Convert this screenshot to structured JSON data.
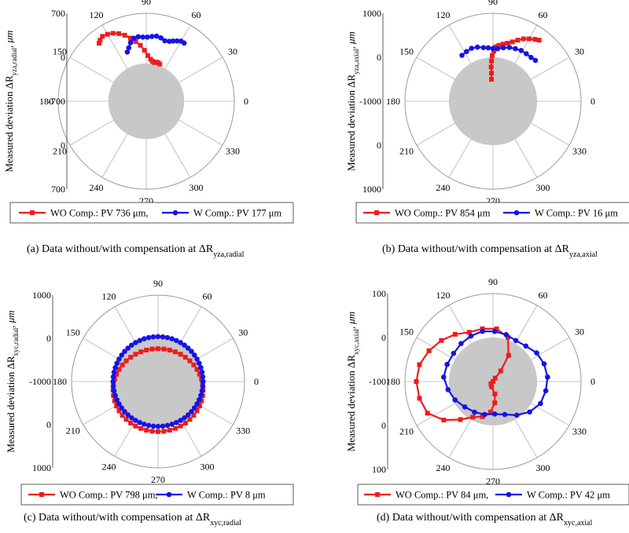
{
  "charts": [
    {
      "id": "a",
      "type": "polar",
      "angle_labels": [
        "0",
        "30",
        "60",
        "90",
        "120",
        "150",
        "180",
        "210",
        "240",
        "270",
        "300",
        "330"
      ],
      "radial_ticks_upper": [
        "700",
        "0",
        "-700"
      ],
      "radial_ticks_lower": [
        "0",
        "700"
      ],
      "ylabel_main": "Measured deviation ΔR",
      "ylabel_sub": "yza,radial",
      "ylabel_unit": ", μm",
      "legend": [
        {
          "name": "WO Comp.: PV 736 μm,",
          "color": "#ee1c1c",
          "marker": "square"
        },
        {
          "name": "W Comp.: PV 177 μm",
          "color": "#1414e6",
          "marker": "circle"
        }
      ],
      "caption_main": "(a) Data without/with compensation at ΔR",
      "caption_sub": "yza,radial",
      "disk_frac": 0.43,
      "series": [
        {
          "name": "WO",
          "color": "#ee1c1c",
          "marker": "square",
          "points": [
            [
              129,
              0.85
            ],
            [
              127,
              0.87
            ],
            [
              124,
              0.89
            ],
            [
              120,
              0.88
            ],
            [
              116,
              0.86
            ],
            [
              112,
              0.83
            ],
            [
              108,
              0.79
            ],
            [
              104,
              0.74
            ],
            [
              100,
              0.69
            ],
            [
              96,
              0.64
            ],
            [
              92,
              0.58
            ],
            [
              88,
              0.52
            ],
            [
              84,
              0.48
            ],
            [
              81,
              0.46
            ],
            [
              78,
              0.45
            ],
            [
              76,
              0.46
            ],
            [
              73,
              0.46
            ],
            [
              70,
              0.45
            ]
          ]
        },
        {
          "name": "W",
          "color": "#1414e6",
          "marker": "circle",
          "points": [
            [
              111,
              0.6
            ],
            [
              108,
              0.64
            ],
            [
              105,
              0.69
            ],
            [
              101,
              0.73
            ],
            [
              97,
              0.74
            ],
            [
              93,
              0.73
            ],
            [
              89,
              0.73
            ],
            [
              85,
              0.74
            ],
            [
              81,
              0.75
            ],
            [
              77,
              0.74
            ],
            [
              73,
              0.72
            ],
            [
              69,
              0.73
            ],
            [
              66,
              0.75
            ],
            [
              63,
              0.77
            ],
            [
              60,
              0.79
            ],
            [
              57,
              0.79
            ]
          ]
        }
      ]
    },
    {
      "id": "b",
      "type": "polar",
      "angle_labels": [
        "0",
        "30",
        "60",
        "90",
        "120",
        "150",
        "180",
        "210",
        "240",
        "270",
        "300",
        "330"
      ],
      "radial_ticks_upper": [
        "1000",
        "0",
        "-1000"
      ],
      "radial_ticks_lower": [
        "0",
        "1000"
      ],
      "ylabel_main": "Measured deviation ΔR",
      "ylabel_sub": "yza,axial",
      "ylabel_unit": ", μm",
      "legend": [
        {
          "name": "WO Comp.: PV 854 μm",
          "color": "#ee1c1c",
          "marker": "square"
        },
        {
          "name": "W Comp.: PV 16 μm",
          "color": "#1414e6",
          "marker": "circle"
        }
      ],
      "caption_main": "(b) Data without/with compensation at ΔR",
      "caption_sub": "yza,axial",
      "disk_frac": 0.5,
      "series": [
        {
          "name": "WO",
          "color": "#ee1c1c",
          "marker": "square",
          "points": [
            [
              94,
              0.25
            ],
            [
              93,
              0.32
            ],
            [
              93,
              0.39
            ],
            [
              92,
              0.46
            ],
            [
              91,
              0.52
            ],
            [
              89,
              0.57
            ],
            [
              87,
              0.62
            ],
            [
              84,
              0.64
            ],
            [
              80,
              0.66
            ],
            [
              76,
              0.68
            ],
            [
              72,
              0.71
            ],
            [
              68,
              0.75
            ],
            [
              64,
              0.79
            ],
            [
              60,
              0.82
            ],
            [
              56,
              0.85
            ],
            [
              53,
              0.87
            ]
          ]
        },
        {
          "name": "W",
          "color": "#1414e6",
          "marker": "circle",
          "points": [
            [
              124,
              0.63
            ],
            [
              118,
              0.64
            ],
            [
              112,
              0.65
            ],
            [
              106,
              0.64
            ],
            [
              100,
              0.62
            ],
            [
              95,
              0.61
            ],
            [
              90,
              0.6
            ],
            [
              85,
              0.6
            ],
            [
              79,
              0.62
            ],
            [
              73,
              0.64
            ],
            [
              67,
              0.65
            ],
            [
              61,
              0.66
            ],
            [
              55,
              0.66
            ],
            [
              49,
              0.66
            ],
            [
              44,
              0.67
            ]
          ]
        }
      ]
    },
    {
      "id": "c",
      "type": "polar",
      "angle_labels": [
        "0",
        "30",
        "60",
        "90",
        "120",
        "150",
        "180",
        "210",
        "240",
        "270",
        "300",
        "330"
      ],
      "radial_ticks_upper": [
        "1000",
        "0",
        "-1000"
      ],
      "radial_ticks_lower": [
        "0",
        "1000"
      ],
      "ylabel_main": "Measured deviation ΔR",
      "ylabel_sub": "xyc,radial",
      "ylabel_unit": ", μm",
      "legend": [
        {
          "name": "WO Comp.: PV 798 μm,",
          "color": "#ee1c1c",
          "marker": "square"
        },
        {
          "name": "W Comp.: PV 8 μm",
          "color": "#1414e6",
          "marker": "circle"
        }
      ],
      "caption_main": "(c) Data without/with compensation at ΔR",
      "caption_sub": "xyc,radial",
      "disk_frac": 0.5,
      "circle_red": {
        "cx": 0,
        "cy": -0.1,
        "rx": 0.52,
        "ry": 0.48,
        "n": 48
      },
      "circle_blue": {
        "cx": 0,
        "cy": 0,
        "rx": 0.52,
        "ry": 0.52,
        "n": 60
      }
    },
    {
      "id": "d",
      "type": "polar",
      "angle_labels": [
        "0",
        "30",
        "60",
        "90",
        "120",
        "150",
        "180",
        "210",
        "240",
        "270",
        "300",
        "330"
      ],
      "radial_ticks_upper": [
        "100",
        "0",
        "-100"
      ],
      "radial_ticks_lower": [
        "0",
        "100"
      ],
      "ylabel_main": "Measured deviation ΔR",
      "ylabel_sub": "xyc,axial",
      "ylabel_unit": ", μm",
      "legend": [
        {
          "name": "WO Comp.: PV 84 μm,",
          "color": "#ee1c1c",
          "marker": "square"
        },
        {
          "name": "W Comp.: PV 42 μm",
          "color": "#1414e6",
          "marker": "circle"
        }
      ],
      "caption_main": "(d) Data without/with compensation at ΔR",
      "caption_sub": "xyc,axial",
      "disk_frac": 0.5,
      "blob_red": [
        [
          0,
          0.12
        ],
        [
          15,
          0.15
        ],
        [
          30,
          0.24
        ],
        [
          45,
          0.42
        ],
        [
          60,
          0.58
        ],
        [
          75,
          0.62
        ],
        [
          90,
          0.6
        ],
        [
          105,
          0.58
        ],
        [
          120,
          0.62
        ],
        [
          135,
          0.66
        ],
        [
          150,
          0.7
        ],
        [
          165,
          0.74
        ],
        [
          180,
          0.75
        ],
        [
          195,
          0.74
        ],
        [
          210,
          0.72
        ],
        [
          225,
          0.62
        ],
        [
          240,
          0.5
        ],
        [
          255,
          0.42
        ],
        [
          270,
          0.4
        ],
        [
          285,
          0.36
        ],
        [
          300,
          0.28
        ],
        [
          315,
          0.2
        ],
        [
          330,
          0.12
        ],
        [
          345,
          0.1
        ]
      ],
      "blob_blue": [
        [
          0,
          0.6
        ],
        [
          15,
          0.58
        ],
        [
          30,
          0.55
        ],
        [
          45,
          0.5
        ],
        [
          60,
          0.48
        ],
        [
          75,
          0.5
        ],
        [
          90,
          0.52
        ],
        [
          105,
          0.54
        ],
        [
          120,
          0.54
        ],
        [
          135,
          0.54
        ],
        [
          150,
          0.54
        ],
        [
          165,
          0.56
        ],
        [
          180,
          0.58
        ],
        [
          195,
          0.55
        ],
        [
          210,
          0.52
        ],
        [
          225,
          0.48
        ],
        [
          240,
          0.46
        ],
        [
          255,
          0.44
        ],
        [
          270,
          0.42
        ],
        [
          285,
          0.44
        ],
        [
          300,
          0.5
        ],
        [
          315,
          0.56
        ],
        [
          330,
          0.6
        ],
        [
          345,
          0.6
        ]
      ]
    }
  ]
}
